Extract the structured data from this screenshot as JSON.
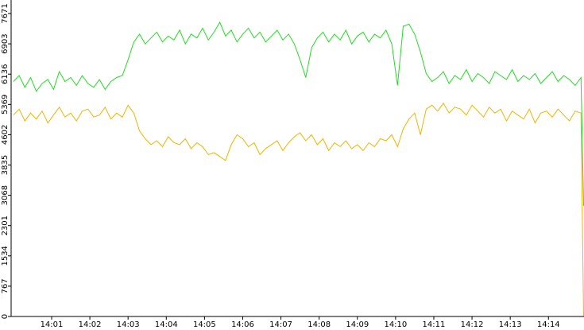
{
  "chart_data": {
    "type": "line",
    "x": [
      0,
      0.15,
      0.3,
      0.45,
      0.6,
      0.75,
      0.9,
      1.05,
      1.2,
      1.35,
      1.5,
      1.65,
      1.8,
      1.95,
      2.1,
      2.25,
      2.4,
      2.55,
      2.7,
      2.85,
      3,
      3.15,
      3.3,
      3.45,
      3.6,
      3.75,
      3.9,
      4.05,
      4.2,
      4.35,
      4.5,
      4.65,
      4.8,
      4.95,
      5.1,
      5.25,
      5.4,
      5.55,
      5.7,
      5.85,
      6,
      6.15,
      6.3,
      6.45,
      6.6,
      6.75,
      6.9,
      7.05,
      7.2,
      7.35,
      7.5,
      7.65,
      7.8,
      7.95,
      8.1,
      8.25,
      8.4,
      8.55,
      8.7,
      8.85,
      9,
      9.15,
      9.3,
      9.45,
      9.6,
      9.75,
      9.9,
      10.05,
      10.2,
      10.35,
      10.5,
      10.65,
      10.8,
      10.95,
      11.1,
      11.25,
      11.4,
      11.55,
      11.7,
      11.85,
      12,
      12.15,
      12.3,
      12.45,
      12.6,
      12.75,
      12.9,
      13.05,
      13.2,
      13.35,
      13.5,
      13.65,
      13.8,
      13.95,
      14.1,
      14.25,
      14.4,
      14.55,
      14.7,
      14.85,
      14.92
    ],
    "series": [
      {
        "color": "#22dd22",
        "values": [
          5950,
          6100,
          5800,
          6050,
          5700,
          5900,
          6000,
          5750,
          6200,
          5950,
          6050,
          5850,
          6100,
          5900,
          5800,
          6000,
          5750,
          5950,
          6050,
          6100,
          6500,
          6950,
          7150,
          6900,
          7050,
          7200,
          6950,
          7100,
          7000,
          7250,
          6900,
          7150,
          7050,
          7300,
          7000,
          7200,
          7450,
          7100,
          7250,
          6950,
          7150,
          7300,
          7050,
          7200,
          6950,
          7100,
          7250,
          7000,
          7150,
          6900,
          6500,
          6050,
          6800,
          7050,
          7200,
          6950,
          7150,
          7000,
          7250,
          6900,
          7100,
          7200,
          6950,
          7150,
          7050,
          7250,
          6900,
          5850,
          7350,
          7400,
          7150,
          6700,
          6150,
          5950,
          6050,
          6200,
          5900,
          6100,
          6000,
          6250,
          5950,
          6150,
          6050,
          5900,
          6200,
          6100,
          6000,
          6250,
          5950,
          6100,
          6000,
          6150,
          5900,
          6050,
          6200,
          5950,
          6100,
          6000,
          5850,
          6050,
          2800
        ]
      },
      {
        "color": "#f0b400",
        "values": [
          5100,
          5250,
          4950,
          5150,
          5000,
          5200,
          4900,
          5100,
          5300,
          5050,
          5150,
          4950,
          5200,
          5250,
          5050,
          5100,
          5300,
          5000,
          5150,
          5050,
          5350,
          5150,
          4700,
          4500,
          4350,
          4450,
          4300,
          4550,
          4400,
          4350,
          4500,
          4250,
          4400,
          4300,
          4100,
          4150,
          4050,
          3950,
          4350,
          4600,
          4500,
          4300,
          4400,
          4100,
          4250,
          4350,
          4450,
          4200,
          4400,
          4550,
          4650,
          4450,
          4600,
          4350,
          4500,
          4200,
          4400,
          4300,
          4450,
          4250,
          4350,
          4200,
          4400,
          4300,
          4500,
          4450,
          4600,
          4300,
          4750,
          5000,
          5150,
          4600,
          5250,
          5350,
          5200,
          5400,
          5150,
          5300,
          5250,
          5100,
          5350,
          5200,
          5050,
          5300,
          5150,
          5250,
          4950,
          5200,
          5100,
          5000,
          5250,
          4900,
          5150,
          5200,
          5050,
          5250,
          5100,
          4950,
          5200,
          5150,
          0
        ]
      }
    ],
    "xlim": [
      -0.06,
      14.93
    ],
    "xticks": [
      {
        "value": 1,
        "label": "14:01"
      },
      {
        "value": 2,
        "label": "14:02"
      },
      {
        "value": 3,
        "label": "14:03"
      },
      {
        "value": 4,
        "label": "14:04"
      },
      {
        "value": 5,
        "label": "14:05"
      },
      {
        "value": 6,
        "label": "14:06"
      },
      {
        "value": 7,
        "label": "14:07"
      },
      {
        "value": 8,
        "label": "14:08"
      },
      {
        "value": 9,
        "label": "14:09"
      },
      {
        "value": 10,
        "label": "14:10"
      },
      {
        "value": 11,
        "label": "14:11"
      },
      {
        "value": 12,
        "label": "14:12"
      },
      {
        "value": 13,
        "label": "14:13"
      },
      {
        "value": 14,
        "label": "14:14"
      }
    ],
    "ylim": [
      0,
      8013
    ],
    "yticks": [
      0,
      767,
      1534,
      2301,
      3068,
      3835,
      4602,
      5369,
      6136,
      6903,
      7671
    ]
  }
}
